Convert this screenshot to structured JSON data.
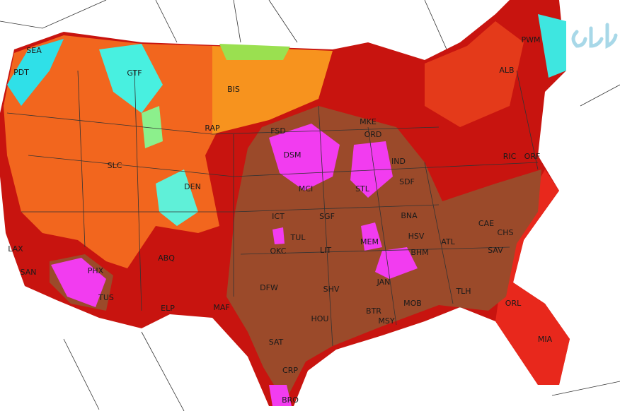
{
  "map": {
    "cities": [
      "SEA",
      "PDT",
      "GTF",
      "BIS",
      "RAP",
      "FSD",
      "MKE",
      "ORD",
      "DSM",
      "DEN",
      "SLC",
      "MCI",
      "STL",
      "IND",
      "SDF",
      "ICT",
      "SGF",
      "TUL",
      "OKC",
      "LIT",
      "MEM",
      "BNA",
      "HSV",
      "BHM",
      "ATL",
      "CAE",
      "CHS",
      "SAV",
      "ABQ",
      "PHX",
      "TUS",
      "ELP",
      "MAF",
      "DFW",
      "SHV",
      "JAN",
      "MOB",
      "BTR",
      "MSY",
      "TLH",
      "ORL",
      "MIA",
      "HOU",
      "SAT",
      "CRP",
      "BRO",
      "LAX",
      "SAN",
      "ALB",
      "PWM",
      "RIC",
      "ORF"
    ]
  }
}
